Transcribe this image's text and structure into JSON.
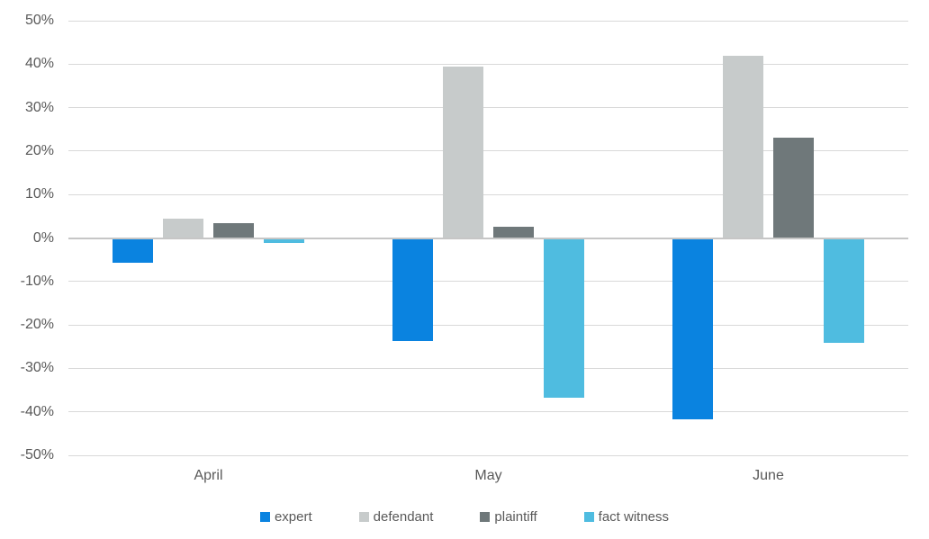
{
  "chart_data": {
    "type": "bar",
    "title": "",
    "xlabel": "",
    "ylabel": "",
    "categories": [
      "April",
      "May",
      "June"
    ],
    "series": [
      {
        "name": "expert",
        "color": "#0a83e0",
        "values": [
          -5.5,
          -23.5,
          -41.5
        ]
      },
      {
        "name": "defendant",
        "color": "#c7cbcb",
        "values": [
          4.5,
          39.5,
          42
        ]
      },
      {
        "name": "plaintiff",
        "color": "#6f787a",
        "values": [
          3.5,
          2.5,
          23
        ]
      },
      {
        "name": "fact witness",
        "color": "#4fbce0",
        "values": [
          -1,
          -36.5,
          -24
        ]
      }
    ],
    "yticks": [
      {
        "value": 50,
        "label": "50%"
      },
      {
        "value": 40,
        "label": "40%"
      },
      {
        "value": 30,
        "label": "30%"
      },
      {
        "value": 20,
        "label": "20%"
      },
      {
        "value": 10,
        "label": "10%"
      },
      {
        "value": 0,
        "label": "0%"
      },
      {
        "value": -10,
        "label": "-10%"
      },
      {
        "value": -20,
        "label": "-20%"
      },
      {
        "value": -30,
        "label": "-30%"
      },
      {
        "value": -40,
        "label": "-40%"
      },
      {
        "value": -50,
        "label": "-50%"
      }
    ],
    "ylim": [
      -50,
      50
    ],
    "grid": true,
    "legend_position": "bottom",
    "colors": {
      "gridline": "#d9d9d9",
      "zero_line": "#c6c6c6",
      "axis_text": "#595959",
      "background": "#ffffff"
    }
  }
}
